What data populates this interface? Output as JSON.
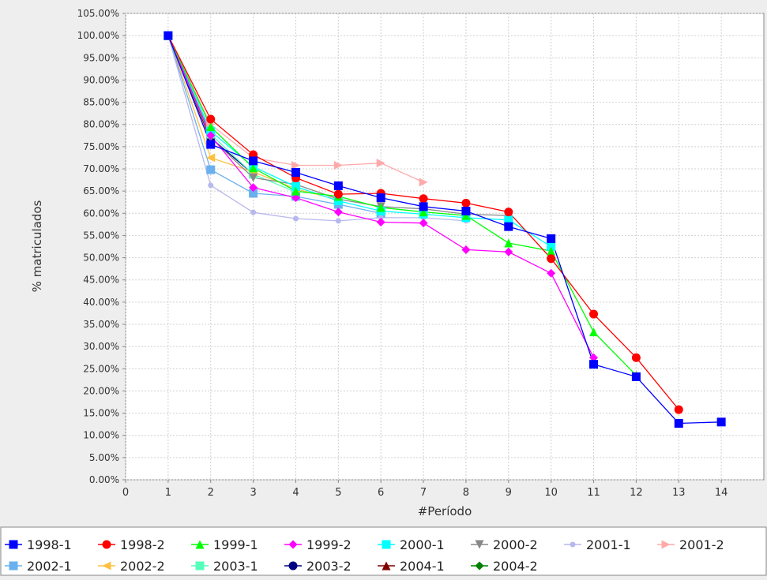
{
  "chart_data": {
    "type": "line",
    "title": "",
    "xlabel": "#Período",
    "ylabel": "% matriculados",
    "xlim": [
      0,
      15
    ],
    "ylim": [
      0,
      105
    ],
    "xticks": [
      0,
      1,
      2,
      3,
      4,
      5,
      6,
      7,
      8,
      9,
      10,
      11,
      12,
      13,
      14
    ],
    "yticks": [
      0,
      5,
      10,
      15,
      20,
      25,
      30,
      35,
      40,
      45,
      50,
      55,
      60,
      65,
      70,
      75,
      80,
      85,
      90,
      95,
      100,
      105
    ],
    "ytick_labels": [
      "0.00%",
      "5.00%",
      "10.00%",
      "15.00%",
      "20.00%",
      "25.00%",
      "30.00%",
      "35.00%",
      "40.00%",
      "45.00%",
      "50.00%",
      "55.00%",
      "60.00%",
      "65.00%",
      "70.00%",
      "75.00%",
      "80.00%",
      "85.00%",
      "90.00%",
      "95.00%",
      "100.00%",
      "105.00%"
    ],
    "grid": true,
    "legend_position": "bottom",
    "series": [
      {
        "name": "1998-1",
        "color": "#0000ff",
        "marker": "square",
        "x": [
          1,
          2,
          3,
          4,
          5,
          6,
          7,
          8,
          9,
          10,
          11,
          12,
          13,
          14
        ],
        "y": [
          100,
          75.5,
          71.8,
          69.2,
          66.2,
          63.5,
          61.5,
          60.5,
          57.0,
          54.3,
          26.0,
          23.2,
          12.7,
          13.0
        ]
      },
      {
        "name": "1998-2",
        "color": "#ff0000",
        "marker": "circle",
        "x": [
          1,
          2,
          3,
          4,
          5,
          6,
          7,
          8,
          9,
          10,
          11,
          12,
          13
        ],
        "y": [
          100,
          81.2,
          73.2,
          68.0,
          64.3,
          64.5,
          63.3,
          62.3,
          60.3,
          49.8,
          37.3,
          27.5,
          15.8
        ]
      },
      {
        "name": "1999-1",
        "color": "#00ff00",
        "marker": "triangle-up",
        "x": [
          1,
          2,
          3,
          4,
          5,
          6,
          7,
          8,
          9,
          10,
          11,
          12
        ],
        "y": [
          100,
          79.5,
          70.2,
          65.0,
          63.8,
          61.3,
          60.3,
          59.5,
          53.3,
          51.5,
          33.3,
          23.5
        ]
      },
      {
        "name": "1999-2",
        "color": "#ff00ff",
        "marker": "diamond",
        "x": [
          1,
          2,
          3,
          4,
          5,
          6,
          7,
          8,
          9,
          10,
          11
        ],
        "y": [
          100,
          77.5,
          65.8,
          63.5,
          60.3,
          58.0,
          57.8,
          51.8,
          51.3,
          46.5,
          27.5
        ]
      },
      {
        "name": "2000-1",
        "color": "#00ffff",
        "marker": "square",
        "x": [
          1,
          2,
          3,
          4,
          5,
          6,
          7,
          8,
          9,
          10
        ],
        "y": [
          100,
          78.5,
          70.5,
          66.0,
          62.8,
          60.5,
          59.8,
          59.0,
          58.5,
          52.5
        ]
      },
      {
        "name": "2000-2",
        "color": "#888888",
        "marker": "triangle-down",
        "x": [
          1,
          2,
          3,
          4,
          5,
          6,
          7,
          8,
          9
        ],
        "y": [
          100,
          77.0,
          68.0,
          66.5,
          63.2,
          61.5,
          61.0,
          59.8,
          59.5
        ]
      },
      {
        "name": "2001-1",
        "color": "#b8b8ee",
        "marker": "circle-small",
        "x": [
          1,
          2,
          3,
          4,
          5,
          6,
          7,
          8
        ],
        "y": [
          100,
          66.3,
          60.2,
          58.8,
          58.3,
          59.0,
          59.0,
          58.3
        ]
      },
      {
        "name": "2001-2",
        "color": "#ffaaaa",
        "marker": "triangle-right",
        "x": [
          1,
          2,
          3,
          4,
          5,
          6,
          7
        ],
        "y": [
          100,
          80.0,
          72.5,
          70.8,
          70.8,
          71.3,
          67.0
        ]
      },
      {
        "name": "2002-1",
        "color": "#6ab0ee",
        "marker": "square",
        "x": [
          1,
          2,
          3,
          4,
          5,
          6
        ],
        "y": [
          100,
          69.8,
          64.5,
          63.8,
          62.0,
          60.0
        ]
      },
      {
        "name": "2002-2",
        "color": "#ffc040",
        "marker": "triangle-left",
        "x": [
          1,
          2,
          3,
          4,
          5
        ],
        "y": [
          100,
          72.5,
          69.3,
          65.5,
          63.0
        ]
      },
      {
        "name": "2003-1",
        "color": "#55ffbb",
        "marker": "square",
        "x": [
          1,
          2,
          3,
          4
        ],
        "y": [
          100,
          77.8,
          68.8,
          64.8
        ]
      },
      {
        "name": "2003-2",
        "color": "#000080",
        "marker": "circle",
        "x": [
          1,
          2,
          3
        ],
        "y": [
          100,
          77.0,
          68.8
        ]
      },
      {
        "name": "2004-1",
        "color": "#800000",
        "marker": "triangle-up",
        "x": [
          1,
          2
        ],
        "y": [
          100,
          76.5
        ]
      },
      {
        "name": "2004-2",
        "color": "#008000",
        "marker": "diamond",
        "x": [
          1,
          2
        ],
        "y": [
          100,
          78.0
        ]
      }
    ]
  }
}
